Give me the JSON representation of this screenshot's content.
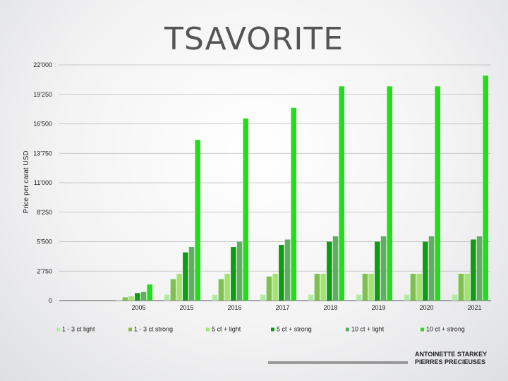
{
  "title": "TSAVORITE",
  "credit": {
    "line1": "ANTOINETTE STARKEY",
    "line2": "PIERRES PRECIEUSES"
  },
  "chart_data": {
    "type": "bar",
    "ylabel": "Price per carat USD",
    "xlabel": "",
    "ylim": [
      0,
      22000
    ],
    "yticks": [
      0,
      2750,
      5500,
      8250,
      11000,
      13750,
      16500,
      19250,
      22000
    ],
    "ytick_labels": [
      "0",
      "2'750",
      "5'500",
      "8'250",
      "11'000",
      "13'750",
      "16'500",
      "19'250",
      "22'000"
    ],
    "grid": true,
    "legend_position": "bottom",
    "categories": [
      "",
      "2005",
      "2015",
      "2016",
      "2017",
      "2018",
      "2019",
      "2020",
      "2021"
    ],
    "series": [
      {
        "name": "1 - 3 ct light",
        "color": "#b2eca4",
        "values": [
          null,
          50,
          550,
          550,
          550,
          550,
          550,
          550,
          550
        ]
      },
      {
        "name": "1 - 3 ct strong",
        "color": "#7fbf4e",
        "values": [
          null,
          300,
          2000,
          2000,
          2250,
          2500,
          2500,
          2500,
          2500
        ]
      },
      {
        "name": "5 ct + light",
        "color": "#9fe56f",
        "values": [
          null,
          400,
          2500,
          2500,
          2500,
          2500,
          2500,
          2500,
          2500
        ]
      },
      {
        "name": "5 ct + strong",
        "color": "#0d9c12",
        "values": [
          null,
          700,
          4500,
          5000,
          5200,
          5500,
          5500,
          5500,
          5700
        ]
      },
      {
        "name": "10 ct + light",
        "color": "#5fae62",
        "values": [
          null,
          800,
          5000,
          5500,
          5700,
          6000,
          6000,
          6000,
          6000
        ]
      },
      {
        "name": "10 ct + strong",
        "color": "#22dd1a",
        "values": [
          null,
          1500,
          15000,
          17000,
          18000,
          20000,
          20000,
          20000,
          21000
        ]
      }
    ]
  }
}
